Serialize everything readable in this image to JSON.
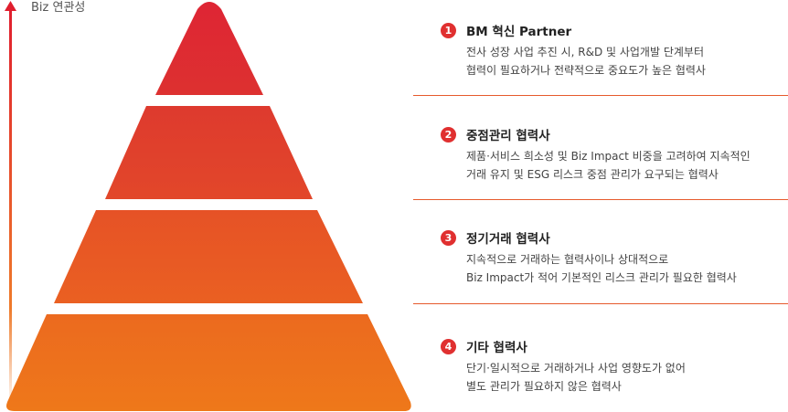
{
  "axis": {
    "label": "Biz 연관성"
  },
  "tiers": [
    {
      "number": "1",
      "title": "BM 혁신 Partner",
      "desc1": "전사 성장 사업 추진 시, R&D 및 사업개발 단계부터",
      "desc2": "협력이 필요하거나 전략적으로 중요도가 높은 협력사",
      "color": "#dc2a36"
    },
    {
      "number": "2",
      "title": "중점관리 협력사",
      "desc1": "제품·서비스 희소성 및 Biz Impact 비중을 고려하여 지속적인",
      "desc2": "거래 유지 및 ESG 리스크 중점 관리가 요구되는 협력사",
      "color": "#e03f2c"
    },
    {
      "number": "3",
      "title": "정기거래 협력사",
      "desc1": "지속적으로 거래하는 협력사이나 상대적으로",
      "desc2": "Biz Impact가 적어 기본적인 리스크 관리가 필요한 협력사",
      "color": "#e85a24"
    },
    {
      "number": "4",
      "title": "기타 협력사",
      "desc1": "단기·일시적으로 거래하거나 사업 영향도가 없어",
      "desc2": "별도 관리가 필요하지 않은 협력사",
      "color": "#ed711c"
    }
  ],
  "colors": {
    "axis_top": "#e01e2e",
    "axis_bottom": "#ffffff",
    "badge": "#e03030",
    "divider": "#e65a2c"
  }
}
